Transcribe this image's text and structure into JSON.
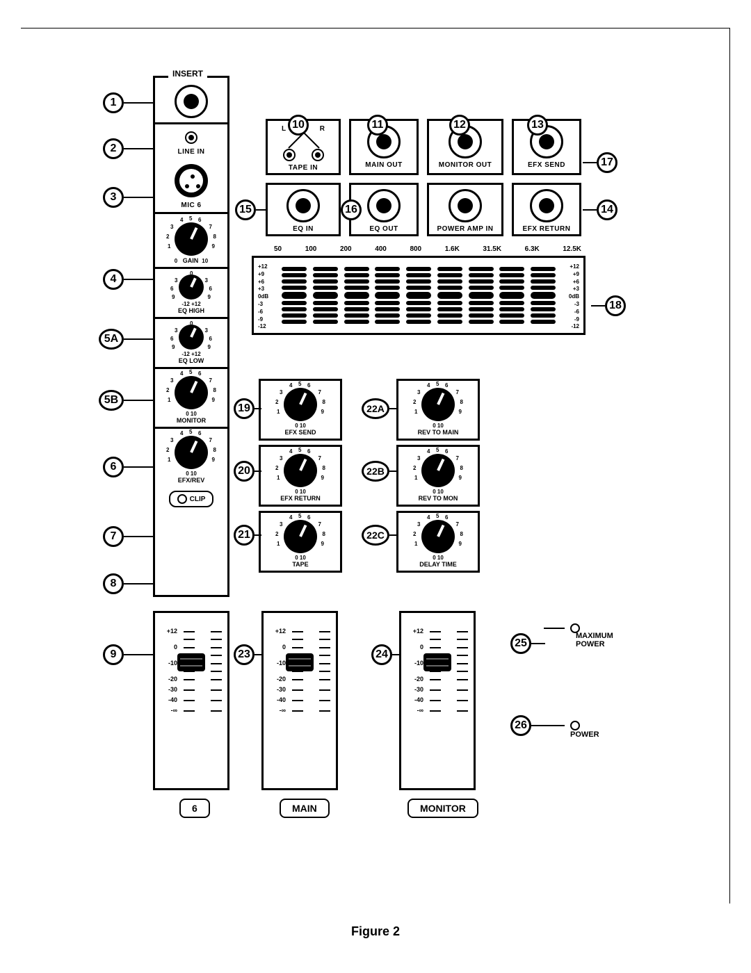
{
  "caption": "Figure 2",
  "insert_label": "INSERT",
  "channel_strip": {
    "line_in": "LINE IN",
    "mic": "MIC 6",
    "gain": {
      "label": "GAIN",
      "ticks_left": [
        "3",
        "2",
        "1",
        "0"
      ],
      "ticks_right": [
        "7",
        "8",
        "9",
        "10"
      ],
      "ticks_top": [
        "4",
        "5",
        "6"
      ]
    },
    "eq_high": {
      "label": "EQ HIGH",
      "range": "-12      +12"
    },
    "eq_low": {
      "label": "EQ LOW",
      "range": "-12      +12"
    },
    "monitor": {
      "label": "MONITOR",
      "range": "0        10"
    },
    "efxrev": {
      "label": "EFX/REV",
      "range": "0        10"
    },
    "clip": "CLIP",
    "fader_label": "6"
  },
  "io_row": {
    "tape_in": {
      "label": "TAPE IN",
      "lr": [
        "L",
        "R"
      ]
    },
    "main_out": "MAIN OUT",
    "monitor_out": "MONITOR OUT",
    "efx_send": "EFX SEND",
    "eq_in": "EQ IN",
    "eq_out": "EQ OUT",
    "power_amp_in": "POWER AMP IN",
    "efx_return": "EFX RETURN"
  },
  "eq": {
    "freqs": [
      "50",
      "100",
      "200",
      "400",
      "800",
      "1.6K",
      "31.5K",
      "6.3K",
      "12.5K"
    ],
    "levels_left": [
      "+12",
      "+9",
      "+6",
      "+3",
      "0dB",
      "-3",
      "-6",
      "-9",
      "-12"
    ],
    "levels_right": [
      "+12",
      "+9",
      "+6",
      "+3",
      "0dB",
      "-3",
      "-6",
      "-9",
      "-12"
    ]
  },
  "master_knobs": {
    "efx_send": {
      "label": "EFX SEND",
      "range": "0        10"
    },
    "efx_return": {
      "label": "EFX RETURN",
      "range": "0        10"
    },
    "tape": {
      "label": "TAPE",
      "range": "0        10"
    },
    "rev_main": {
      "label": "REV TO MAIN",
      "range": "0        10"
    },
    "rev_mon": {
      "label": "REV TO MON",
      "range": "0        10"
    },
    "delay": {
      "label": "DELAY TIME",
      "range": "0        10"
    }
  },
  "faders": {
    "scale": [
      "+12",
      "",
      "0",
      "",
      "-10",
      "",
      "-20",
      "-30",
      "-40",
      "-∞"
    ],
    "main": "MAIN",
    "monitor": "MONITOR"
  },
  "leds": {
    "max_power": "MAXIMUM\nPOWER",
    "power": "POWER"
  },
  "callouts": {
    "1": "1",
    "2": "2",
    "3": "3",
    "4": "4",
    "5A": "5A",
    "5B": "5B",
    "6": "6",
    "7": "7",
    "8": "8",
    "9": "9",
    "10": "10",
    "11": "11",
    "12": "12",
    "13": "13",
    "14": "14",
    "15": "15",
    "16": "16",
    "17": "17",
    "18": "18",
    "19": "19",
    "20": "20",
    "21": "21",
    "22A": "22A",
    "22B": "22B",
    "22C": "22C",
    "23": "23",
    "24": "24",
    "25": "25",
    "26": "26"
  }
}
